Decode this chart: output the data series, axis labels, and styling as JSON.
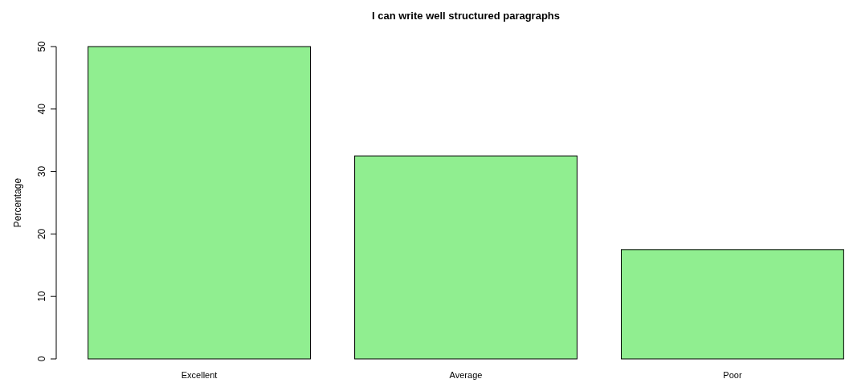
{
  "chart_data": {
    "type": "bar",
    "title": "I can write well structured paragraphs",
    "ylabel": "Percentage",
    "categories": [
      "Excellent",
      "Average",
      "Poor"
    ],
    "values": [
      50,
      32.5,
      17.5
    ],
    "color": "#90ee90",
    "ylim": [
      0,
      50
    ],
    "yticks": [
      0,
      10,
      20,
      30,
      40,
      50
    ]
  }
}
